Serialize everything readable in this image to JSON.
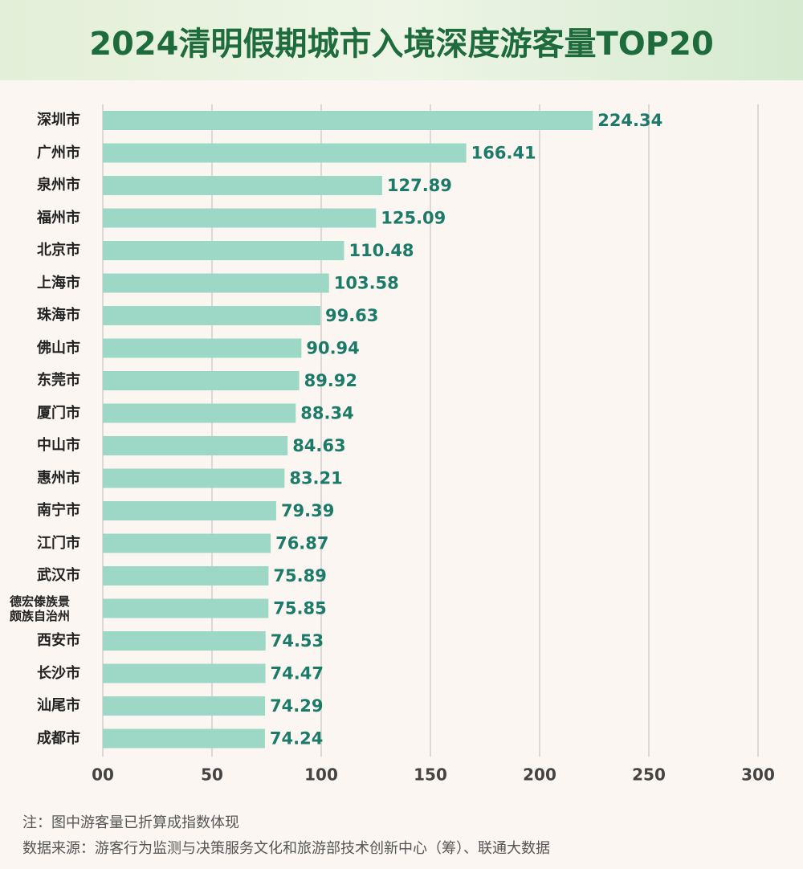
{
  "chart_data": {
    "type": "bar",
    "orientation": "horizontal",
    "title": "2024清明假期城市入境深度游客量TOP20",
    "categories": [
      "深圳市",
      "广州市",
      "泉州市",
      "福州市",
      "北京市",
      "上海市",
      "珠海市",
      "佛山市",
      "东莞市",
      "厦门市",
      "中山市",
      "惠州市",
      "南宁市",
      "江门市",
      "武汉市",
      "德宏傣族景颇族自治州",
      "西安市",
      "长沙市",
      "汕尾市",
      "成都市"
    ],
    "values": [
      224.34,
      166.41,
      127.89,
      125.09,
      110.48,
      103.58,
      99.63,
      90.94,
      89.92,
      88.34,
      84.63,
      83.21,
      79.39,
      76.87,
      75.89,
      75.85,
      74.53,
      74.47,
      74.29,
      74.24
    ],
    "color": "#9dd8c6",
    "xlim": [
      0,
      300
    ],
    "xticks": [
      {
        "value": 0,
        "label": "00"
      },
      50,
      100,
      150,
      200,
      250,
      300
    ],
    "grid": true,
    "notes": [
      "注：图中游客量已折算成指数体现",
      "数据来源：游客行为监测与决策服务文化和旅游部技术创新中心（筹）、联通大数据"
    ]
  }
}
